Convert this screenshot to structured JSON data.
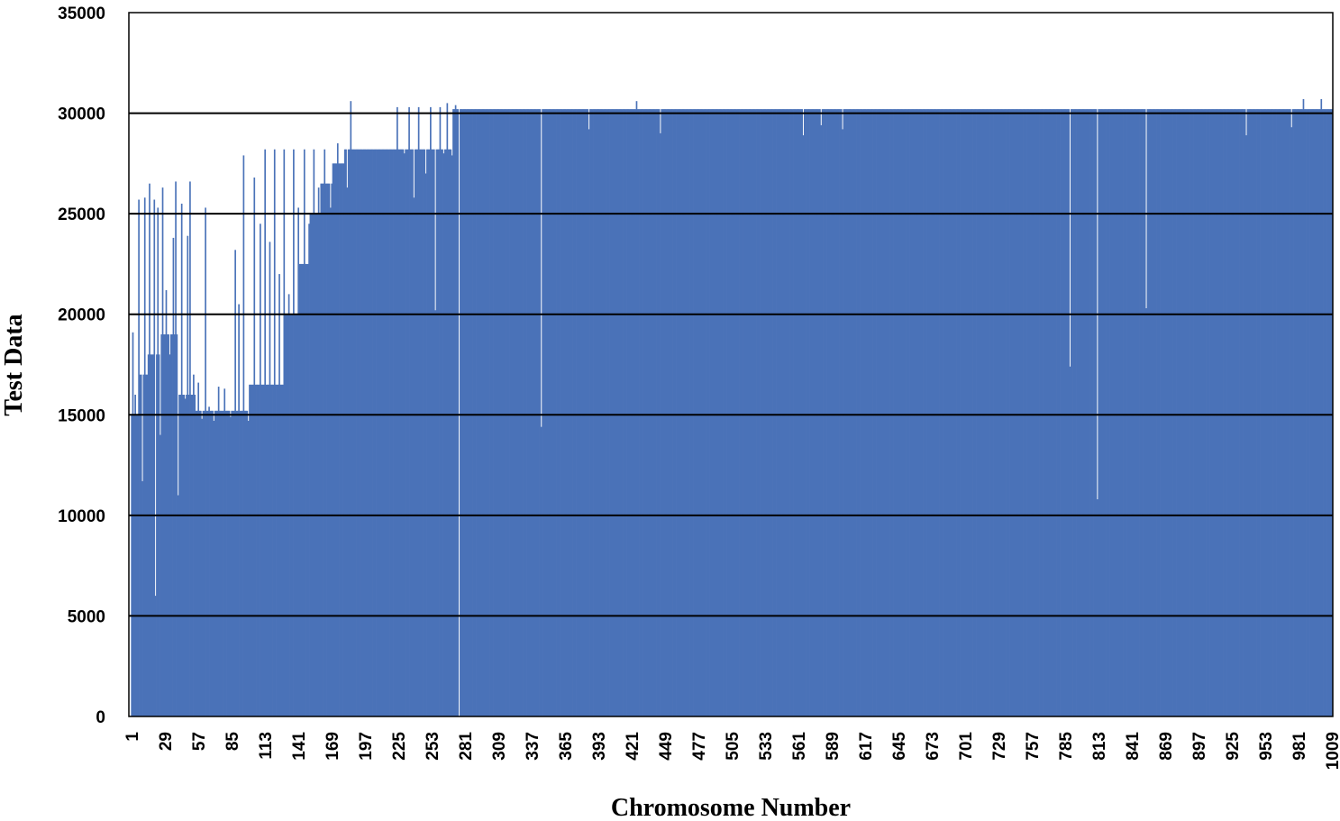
{
  "chart_data": {
    "type": "bar",
    "xlabel": "Chromosome Number",
    "ylabel": "Test Data",
    "ylim": [
      0,
      35000
    ],
    "y_ticks": [
      0,
      5000,
      10000,
      15000,
      20000,
      25000,
      30000,
      35000
    ],
    "y_tick_labels": [
      "0",
      "5000",
      "10000",
      "15000",
      "20000",
      "25000",
      "30000",
      "35000"
    ],
    "x_range": [
      1,
      1009
    ],
    "x_tick_labels": [
      "1",
      "29",
      "57",
      "85",
      "113",
      "141",
      "169",
      "197",
      "225",
      "253",
      "281",
      "309",
      "337",
      "365",
      "393",
      "421",
      "449",
      "477",
      "505",
      "533",
      "561",
      "589",
      "617",
      "645",
      "673",
      "701",
      "729",
      "757",
      "785",
      "813",
      "841",
      "869",
      "897",
      "925",
      "953",
      "981",
      "1009"
    ],
    "grid": "horizontal major gridlines",
    "legend": "none",
    "bar_color": "#4a72b8",
    "gridline_color": "#000000",
    "baseline_segments": [
      {
        "from": 1,
        "to": 8,
        "value": 15000
      },
      {
        "from": 8,
        "to": 14,
        "value": 17000
      },
      {
        "from": 14,
        "to": 25,
        "value": 18000
      },
      {
        "from": 25,
        "to": 40,
        "value": 19000
      },
      {
        "from": 40,
        "to": 55,
        "value": 16000
      },
      {
        "from": 55,
        "to": 100,
        "value": 15200
      },
      {
        "from": 100,
        "to": 130,
        "value": 16500
      },
      {
        "from": 130,
        "to": 142,
        "value": 20000
      },
      {
        "from": 142,
        "to": 150,
        "value": 22500
      },
      {
        "from": 150,
        "to": 160,
        "value": 25000
      },
      {
        "from": 160,
        "to": 170,
        "value": 26500
      },
      {
        "from": 170,
        "to": 180,
        "value": 27500
      },
      {
        "from": 180,
        "to": 270,
        "value": 28200
      },
      {
        "from": 270,
        "to": 1009,
        "value": 30200
      }
    ],
    "spikes": [
      {
        "x": 2,
        "value": 19100
      },
      {
        "x": 4,
        "value": 16000
      },
      {
        "x": 7,
        "value": 25700
      },
      {
        "x": 10,
        "value": 11700
      },
      {
        "x": 12,
        "value": 25800
      },
      {
        "x": 14,
        "value": 17000
      },
      {
        "x": 16,
        "value": 26500
      },
      {
        "x": 18,
        "value": 18000
      },
      {
        "x": 20,
        "value": 25700
      },
      {
        "x": 21,
        "value": 6000
      },
      {
        "x": 23,
        "value": 25300
      },
      {
        "x": 25,
        "value": 14000
      },
      {
        "x": 27,
        "value": 26300
      },
      {
        "x": 30,
        "value": 21200
      },
      {
        "x": 33,
        "value": 18000
      },
      {
        "x": 36,
        "value": 23800
      },
      {
        "x": 38,
        "value": 26600
      },
      {
        "x": 40,
        "value": 11000
      },
      {
        "x": 43,
        "value": 25500
      },
      {
        "x": 46,
        "value": 15800
      },
      {
        "x": 48,
        "value": 23900
      },
      {
        "x": 50,
        "value": 26600
      },
      {
        "x": 53,
        "value": 17000
      },
      {
        "x": 57,
        "value": 16600
      },
      {
        "x": 60,
        "value": 14800
      },
      {
        "x": 63,
        "value": 25300
      },
      {
        "x": 66,
        "value": 15400
      },
      {
        "x": 70,
        "value": 14700
      },
      {
        "x": 74,
        "value": 16400
      },
      {
        "x": 79,
        "value": 16300
      },
      {
        "x": 84,
        "value": 14900
      },
      {
        "x": 88,
        "value": 23200
      },
      {
        "x": 91,
        "value": 20500
      },
      {
        "x": 95,
        "value": 27900
      },
      {
        "x": 99,
        "value": 14700
      },
      {
        "x": 104,
        "value": 26800
      },
      {
        "x": 109,
        "value": 24500
      },
      {
        "x": 113,
        "value": 28200
      },
      {
        "x": 117,
        "value": 23600
      },
      {
        "x": 121,
        "value": 28200
      },
      {
        "x": 125,
        "value": 22000
      },
      {
        "x": 129,
        "value": 28200
      },
      {
        "x": 133,
        "value": 21000
      },
      {
        "x": 137,
        "value": 28200
      },
      {
        "x": 141,
        "value": 25300
      },
      {
        "x": 146,
        "value": 28200
      },
      {
        "x": 150,
        "value": 24500
      },
      {
        "x": 154,
        "value": 28200
      },
      {
        "x": 158,
        "value": 26300
      },
      {
        "x": 163,
        "value": 28200
      },
      {
        "x": 168,
        "value": 25300
      },
      {
        "x": 174,
        "value": 28500
      },
      {
        "x": 182,
        "value": 26300
      },
      {
        "x": 185,
        "value": 30600
      },
      {
        "x": 224,
        "value": 30300
      },
      {
        "x": 230,
        "value": 28000
      },
      {
        "x": 234,
        "value": 30300
      },
      {
        "x": 238,
        "value": 25800
      },
      {
        "x": 242,
        "value": 30300
      },
      {
        "x": 248,
        "value": 27000
      },
      {
        "x": 252,
        "value": 30300
      },
      {
        "x": 256,
        "value": 20200
      },
      {
        "x": 260,
        "value": 30300
      },
      {
        "x": 263,
        "value": 28000
      },
      {
        "x": 266,
        "value": 30500
      },
      {
        "x": 270,
        "value": 27900
      },
      {
        "x": 273,
        "value": 30400
      },
      {
        "x": 276,
        "value": 0
      },
      {
        "x": 345,
        "value": 14400
      },
      {
        "x": 385,
        "value": 29200
      },
      {
        "x": 425,
        "value": 30600
      },
      {
        "x": 445,
        "value": 29000
      },
      {
        "x": 565,
        "value": 28900
      },
      {
        "x": 580,
        "value": 29400
      },
      {
        "x": 598,
        "value": 29200
      },
      {
        "x": 789,
        "value": 17400
      },
      {
        "x": 812,
        "value": 10800
      },
      {
        "x": 853,
        "value": 20300
      },
      {
        "x": 937,
        "value": 28900
      },
      {
        "x": 975,
        "value": 29300
      },
      {
        "x": 985,
        "value": 30700
      },
      {
        "x": 1000,
        "value": 30700
      }
    ]
  }
}
